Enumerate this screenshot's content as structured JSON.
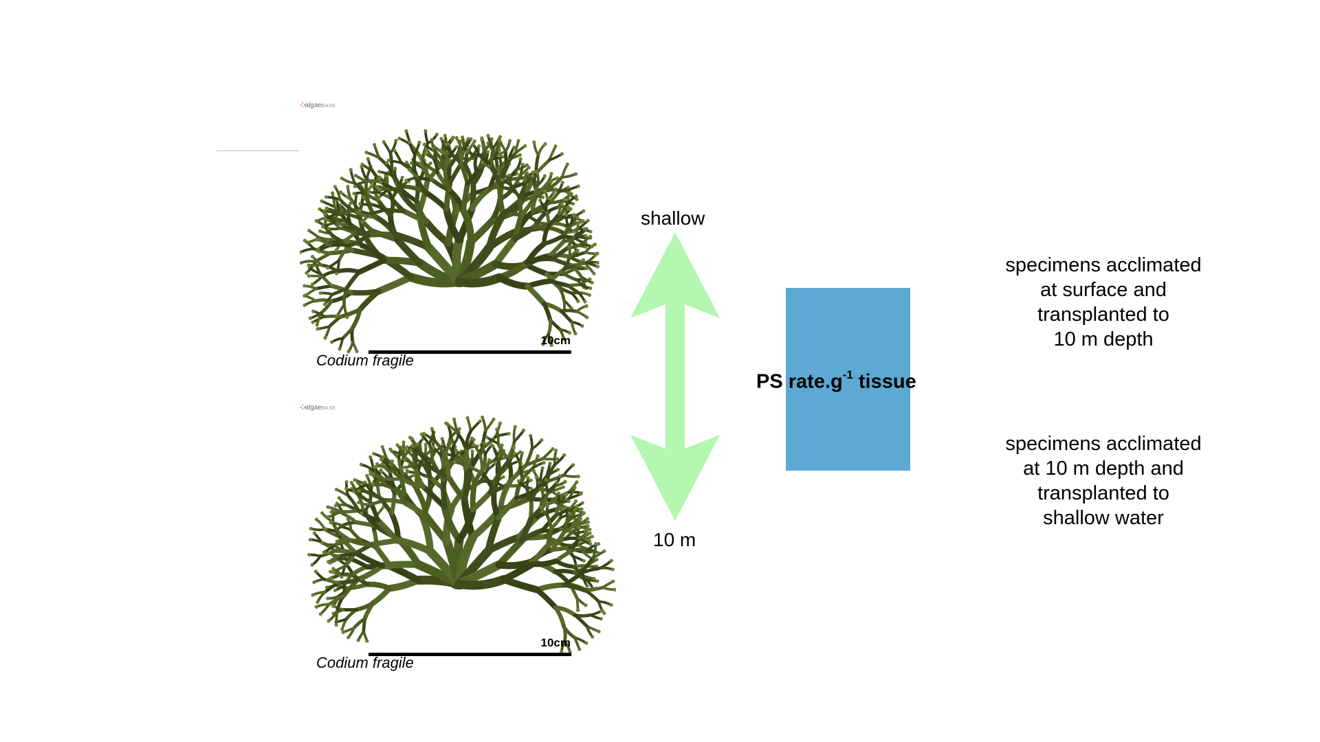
{
  "specimens": [
    {
      "logo_text": "algae",
      "logo_suffix": "BASE",
      "scale_label": "10cm",
      "caption": "Codium fragile"
    },
    {
      "logo_text": "algae",
      "logo_suffix": "BASE",
      "scale_label": "10cm",
      "caption": "Codium fragile"
    }
  ],
  "arrow": {
    "top_label": "shallow",
    "bottom_label": "10 m",
    "color": "#b3f7b1"
  },
  "measure": {
    "label_main": "PS rate.g",
    "label_sup": "-1",
    "label_end": " tissue",
    "box_color": "#5da9d3"
  },
  "descriptions": {
    "top_lines": [
      "specimens acclimated",
      "at surface and",
      "transplanted to",
      "10 m depth"
    ],
    "bottom_lines": [
      "specimens acclimated",
      "at 10 m depth and",
      "transplanted to",
      "shallow water"
    ]
  }
}
